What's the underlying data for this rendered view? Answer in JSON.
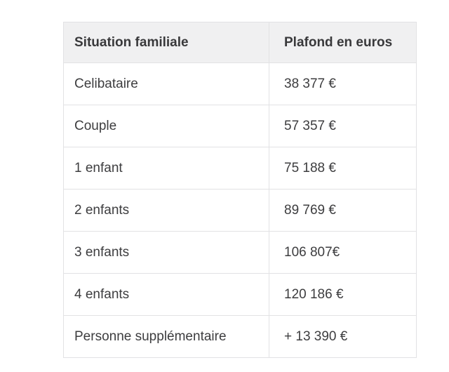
{
  "chart_data": {
    "type": "table",
    "columns": [
      "Situation familiale",
      "Plafond en euros"
    ],
    "rows": [
      [
        "Celibataire",
        "38 377 €"
      ],
      [
        "Couple",
        "57 357 €"
      ],
      [
        "1 enfant",
        "75 188 €"
      ],
      [
        "2 enfants",
        "89 769 €"
      ],
      [
        "3 enfants",
        "106 807€"
      ],
      [
        "4 enfants",
        "120 186 €"
      ],
      [
        "Personne supplémentaire",
        "+ 13 390 €"
      ]
    ],
    "values_numeric": [
      38377,
      57357,
      75188,
      89769,
      106807,
      120186,
      13390
    ],
    "title": "",
    "layout": "two-column bordered table, header row shaded"
  },
  "colors": {
    "page_background": "#ffffff",
    "header_background": "#f0f0f1",
    "row_background": "#ffffff",
    "border": "#e2e2e4",
    "text": "#3d3d3f"
  }
}
